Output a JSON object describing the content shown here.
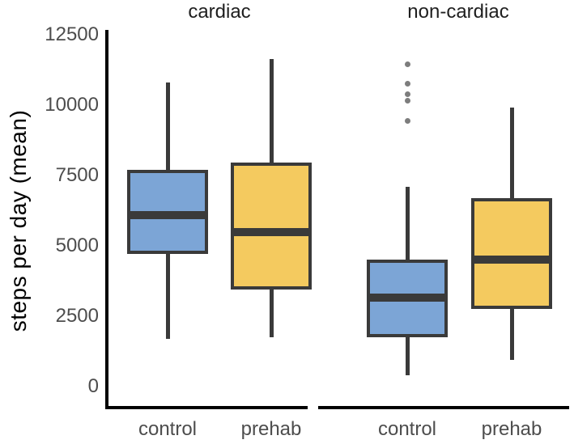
{
  "figure_title": "",
  "y_axis": {
    "title": "steps per day (mean)",
    "tick_labels": [
      "12500",
      "10000",
      "7500",
      "5000",
      "2500",
      "0"
    ]
  },
  "colors": {
    "control_fill": "#7ca5d6",
    "prehab_fill": "#f4ca5f",
    "box_border": "#3a3a3a",
    "axis_line": "#000000",
    "tick_text": "#4d4d4d",
    "facet_title_text": "#1f1f1f",
    "outlier_point": "#7d7d7d",
    "background": "#ffffff"
  },
  "chart_data": {
    "type": "boxplot",
    "title": "",
    "xlabel": "",
    "ylabel": "steps per day (mean)",
    "ylim": [
      0,
      12500
    ],
    "yticks": [
      0,
      2500,
      5000,
      7500,
      10000,
      12500
    ],
    "grid": false,
    "legend": "none",
    "x_categories": [
      "control",
      "prehab"
    ],
    "facets": [
      {
        "label": "cardiac",
        "groups": [
          {
            "x": "control",
            "fill": "#7ca5d6",
            "whisker_low": 1700,
            "q1": 4700,
            "median": 6100,
            "q3": 7700,
            "whisker_high": 10800,
            "outliers": []
          },
          {
            "x": "prehab",
            "fill": "#f4ca5f",
            "whisker_low": 1750,
            "q1": 3450,
            "median": 5500,
            "q3": 7950,
            "whisker_high": 11650,
            "outliers": []
          }
        ]
      },
      {
        "label": "non-cardiac",
        "groups": [
          {
            "x": "control",
            "fill": "#7ca5d6",
            "whisker_low": 400,
            "q1": 1750,
            "median": 3150,
            "q3": 4500,
            "whisker_high": 7100,
            "outliers": [
              11450,
              10750,
              10400,
              10150,
              9450
            ]
          },
          {
            "x": "prehab",
            "fill": "#f4ca5f",
            "whisker_low": 950,
            "q1": 2750,
            "median": 4500,
            "q3": 6700,
            "whisker_high": 9900,
            "outliers": []
          }
        ]
      }
    ]
  }
}
